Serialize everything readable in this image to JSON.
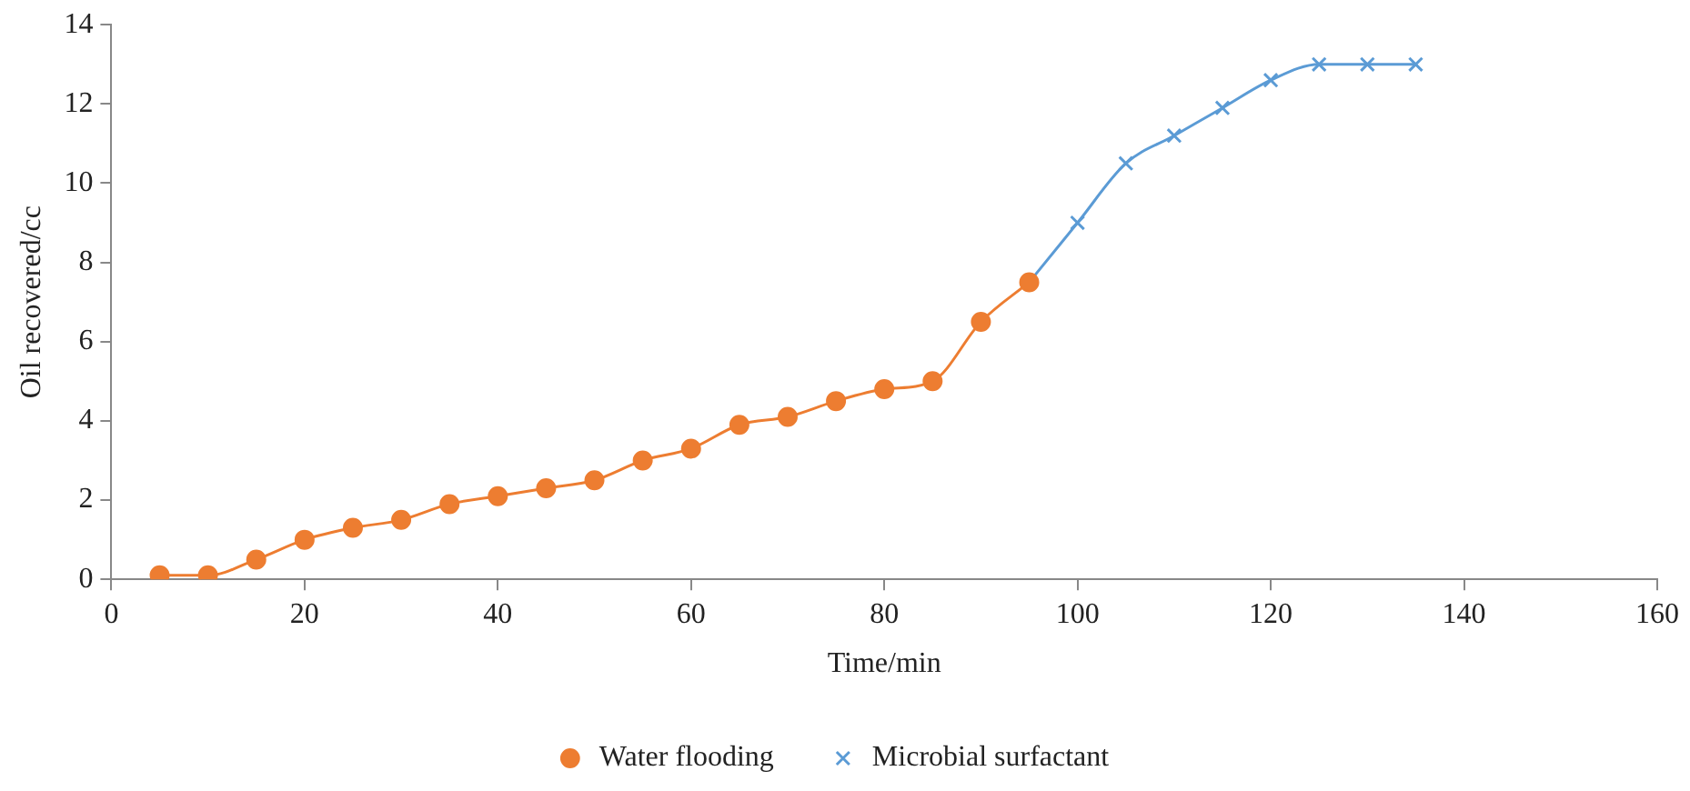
{
  "chart_data": {
    "type": "line",
    "xlabel": "Time/min",
    "ylabel": "Oil recovered/cc",
    "xlim": [
      0,
      160
    ],
    "xticks": [
      0,
      20,
      40,
      60,
      80,
      100,
      120,
      140,
      160
    ],
    "ylim": [
      0,
      14
    ],
    "yticks": [
      0,
      2,
      4,
      6,
      8,
      10,
      12,
      14
    ],
    "grid": false,
    "legend": "bottom",
    "series": [
      {
        "name": "Water flooding",
        "color": "#ed7d31",
        "marker": "circle",
        "x": [
          5,
          10,
          15,
          20,
          25,
          30,
          35,
          40,
          45,
          50,
          55,
          60,
          65,
          70,
          75,
          80,
          85,
          90,
          95
        ],
        "values": [
          0.1,
          0.1,
          0.5,
          1.0,
          1.3,
          1.5,
          1.9,
          2.1,
          2.3,
          2.5,
          3.0,
          3.3,
          3.9,
          4.1,
          4.5,
          4.8,
          5.0,
          6.5,
          7.5
        ]
      },
      {
        "name": "Microbial surfactant",
        "color": "#5b9bd5",
        "marker": "cross",
        "x": [
          95,
          100,
          105,
          110,
          115,
          120,
          125,
          130,
          135
        ],
        "values": [
          7.5,
          9.0,
          10.5,
          11.2,
          11.9,
          12.6,
          13.0,
          13.0,
          13.0
        ]
      }
    ]
  }
}
